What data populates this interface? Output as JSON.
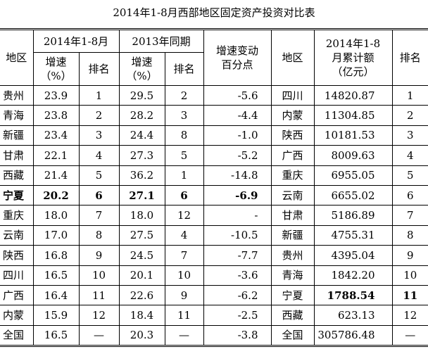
{
  "title": "2014年1-8月西部地区固定资产投资对比表",
  "headers": {
    "region": "地区",
    "period_2014": "2014年1-8月",
    "period_2013": "2013年同期",
    "growth": "增速",
    "pct": "（%）",
    "rank": "排名",
    "change_line1": "增速变动",
    "change_line2": "百分点",
    "region2": "地区",
    "cum_line1": "2014年1-8",
    "cum_line2": "月累计额",
    "cum_line3": "（亿元）",
    "rank2": "排名"
  },
  "rows": [
    {
      "region": "贵州",
      "g2014": "23.9",
      "r2014": "1",
      "g2013": "29.5",
      "r2013": "2",
      "change": "-5.6",
      "region2": "四川",
      "amount": "14820.87",
      "rank2": "1"
    },
    {
      "region": "青海",
      "g2014": "23.8",
      "r2014": "2",
      "g2013": "28.2",
      "r2013": "3",
      "change": "-4.4",
      "region2": "内蒙",
      "amount": "11304.85",
      "rank2": "2"
    },
    {
      "region": "新疆",
      "g2014": "23.4",
      "r2014": "3",
      "g2013": "24.4",
      "r2013": "8",
      "change": "-1.0",
      "region2": "陕西",
      "amount": "10181.53",
      "rank2": "3"
    },
    {
      "region": "甘肃",
      "g2014": "22.1",
      "r2014": "4",
      "g2013": "27.3",
      "r2013": "5",
      "change": "-5.2",
      "region2": "广西",
      "amount": "8009.63",
      "rank2": "4"
    },
    {
      "region": "西藏",
      "g2014": "21.4",
      "r2014": "5",
      "g2013": "36.2",
      "r2013": "1",
      "change": "-14.8",
      "region2": "重庆",
      "amount": "6955.05",
      "rank2": "5"
    },
    {
      "region": "宁夏",
      "g2014": "20.2",
      "r2014": "6",
      "g2013": "27.1",
      "r2013": "6",
      "change": "-6.9",
      "region2": "云南",
      "amount": "6655.02",
      "rank2": "6"
    },
    {
      "region": "重庆",
      "g2014": "18.0",
      "r2014": "7",
      "g2013": "18.0",
      "r2013": "12",
      "change": "-",
      "region2": "甘肃",
      "amount": "5186.89",
      "rank2": "7"
    },
    {
      "region": "云南",
      "g2014": "17.0",
      "r2014": "8",
      "g2013": "27.5",
      "r2013": "4",
      "change": "-10.5",
      "region2": "新疆",
      "amount": "4755.31",
      "rank2": "8"
    },
    {
      "region": "陕西",
      "g2014": "16.8",
      "r2014": "9",
      "g2013": "24.5",
      "r2013": "7",
      "change": "-7.7",
      "region2": "贵州",
      "amount": "4395.04",
      "rank2": "9"
    },
    {
      "region": "四川",
      "g2014": "16.5",
      "r2014": "10",
      "g2013": "20.1",
      "r2013": "10",
      "change": "-3.6",
      "region2": "青海",
      "amount": "1842.20",
      "rank2": "10"
    },
    {
      "region": "广西",
      "g2014": "16.4",
      "r2014": "11",
      "g2013": "22.6",
      "r2013": "9",
      "change": "-6.2",
      "region2": "宁夏",
      "amount": "1788.54",
      "rank2": "11"
    },
    {
      "region": "内蒙",
      "g2014": "15.9",
      "r2014": "12",
      "g2013": "18.4",
      "r2013": "11",
      "change": "-2.5",
      "region2": "西藏",
      "amount": "623.13",
      "rank2": "12"
    },
    {
      "region": "全国",
      "g2014": "16.5",
      "r2014": "—",
      "g2013": "20.3",
      "r2013": "—",
      "change": "-3.8",
      "region2": "全国",
      "amount": "305786.48",
      "rank2": "—"
    }
  ]
}
